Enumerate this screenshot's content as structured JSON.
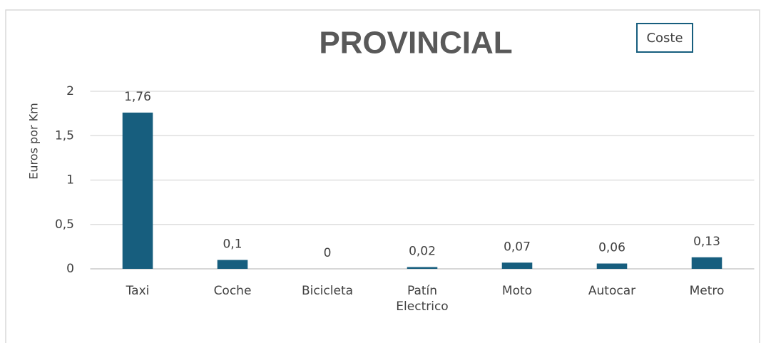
{
  "chart_data": {
    "type": "bar",
    "title": "PROVINCIAL",
    "y_label": "Euros por Km",
    "categories": [
      "Taxi",
      "Coche",
      "Bicicleta",
      "Patín Electrico",
      "Moto",
      "Autocar",
      "Metro"
    ],
    "series": [
      {
        "name": "Coste",
        "color": "#175e7e",
        "values": [
          1.76,
          0.1,
          0,
          0.02,
          0.07,
          0.06,
          0.13
        ],
        "value_labels": [
          "1,76",
          "0,1",
          "0",
          "0,02",
          "0,07",
          "0,06",
          "0,13"
        ]
      }
    ],
    "ylim": [
      0,
      2
    ],
    "yticks": [
      0,
      {
        "value": 0.5,
        "label": "0,5"
      },
      1,
      {
        "value": 1.5,
        "label": "1,5"
      },
      2
    ],
    "grid": true,
    "legend": "top-right"
  }
}
